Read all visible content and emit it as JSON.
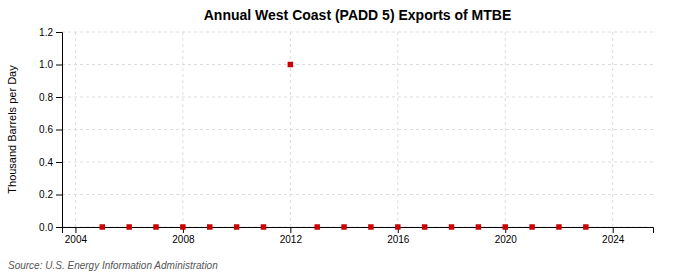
{
  "chart_data": {
    "type": "scatter",
    "title": "Annual West Coast (PADD 5) Exports of MTBE",
    "ylabel": "Thousand Barrels per Day",
    "annotations": [
      "Source: U.S. Energy Information Administration"
    ],
    "x": [
      2005,
      2006,
      2007,
      2008,
      2009,
      2010,
      2011,
      2012,
      2013,
      2014,
      2015,
      2016,
      2017,
      2018,
      2019,
      2020,
      2021,
      2022,
      2023
    ],
    "values": [
      0.0,
      0.0,
      0.0,
      0.0,
      0.0,
      0.0,
      0.0,
      1.0,
      0.0,
      0.0,
      0.0,
      0.0,
      0.0,
      0.0,
      0.0,
      0.0,
      0.0,
      0.0,
      0.0
    ],
    "color": "#cc0000",
    "marker": "square",
    "xlim": [
      2003.5,
      2025.5
    ],
    "ylim": [
      0.0,
      1.2
    ],
    "xticks": [
      2004,
      2008,
      2012,
      2016,
      2020,
      2024
    ],
    "yticks": [
      {
        "value": 0.0,
        "label": "0.0"
      },
      0.2,
      0.4,
      0.6,
      0.8,
      {
        "value": 1.0,
        "label": "1.0"
      },
      1.2
    ],
    "grid": true
  }
}
